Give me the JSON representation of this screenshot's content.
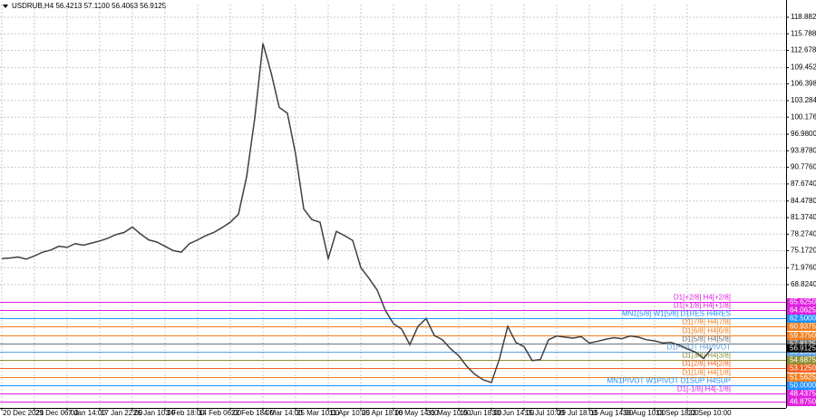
{
  "chart_data": {
    "type": "line",
    "title": "USDRUB,H4  56.4213 57.1100 56.4063 56.9125",
    "color": "#404040",
    "grid": true,
    "ylim": [
      45.74,
      121.26
    ],
    "yticks": [
      {
        "value": 118.882,
        "label": "118.8820"
      },
      {
        "value": 115.788,
        "label": "115.7880"
      },
      {
        "value": 112.678,
        "label": "112.6780"
      },
      {
        "value": 109.452,
        "label": "109.4520"
      },
      {
        "value": 106.398,
        "label": "106.3980"
      },
      {
        "value": 103.284,
        "label": "103.2840"
      },
      {
        "value": 100.176,
        "label": "100.1760"
      },
      {
        "value": 96.98,
        "label": "96.9800"
      },
      {
        "value": 93.878,
        "label": "93.8780"
      },
      {
        "value": 90.776,
        "label": "90.7760"
      },
      {
        "value": 87.674,
        "label": "87.6740"
      },
      {
        "value": 84.478,
        "label": "84.4780"
      },
      {
        "value": 81.374,
        "label": "81.3740"
      },
      {
        "value": 78.274,
        "label": "78.2740"
      },
      {
        "value": 75.172,
        "label": "75.1720"
      },
      {
        "value": 71.976,
        "label": "71.9760"
      },
      {
        "value": 68.824,
        "label": "68.8240"
      }
    ],
    "categories": [
      "20 Dec 2021",
      null,
      null,
      null,
      "29 Dec 06:00",
      null,
      null,
      null,
      "7 Jan 14:00",
      null,
      null,
      null,
      "17 Jan 22:00",
      null,
      null,
      null,
      "26 Jan 10:00",
      null,
      null,
      null,
      "3 Feb 18:00",
      null,
      null,
      null,
      "14 Feb 06:00",
      null,
      null,
      null,
      "22 Feb 18:00",
      null,
      null,
      null,
      "4 Mar 14:00",
      null,
      null,
      null,
      "25 Mar 10:00",
      null,
      null,
      null,
      "11 Apr 10:00",
      null,
      null,
      null,
      "25 Apr 18:00",
      null,
      null,
      null,
      "16 May 14:00",
      null,
      null,
      null,
      "31 May 10:00",
      null,
      null,
      null,
      "15 Jun 18:00",
      null,
      null,
      null,
      "30 Jun 14:00",
      null,
      null,
      null,
      "15 Jul 10:00",
      null,
      null,
      null,
      "29 Jul 18:00",
      null,
      null,
      null,
      "15 Aug 14:00",
      null,
      null,
      null,
      "30 Aug 10:00",
      null,
      null,
      null,
      "13 Sep 18:00",
      null,
      null,
      null,
      "23 Sep 10:00",
      null,
      null,
      null
    ],
    "values": [
      73.7,
      73.8,
      74.0,
      73.6,
      74.2,
      74.9,
      75.3,
      76.0,
      75.8,
      76.5,
      76.2,
      76.6,
      77.0,
      77.5,
      78.2,
      78.6,
      79.6,
      78.3,
      77.2,
      76.8,
      76.0,
      75.2,
      74.9,
      76.5,
      77.2,
      78.0,
      78.6,
      79.5,
      80.5,
      82.0,
      89.0,
      100.0,
      114.0,
      108.5,
      102.0,
      100.9,
      93.3,
      83.0,
      81.0,
      80.5,
      73.7,
      78.8,
      78.0,
      77.1,
      72.0,
      70.0,
      67.8,
      64.0,
      61.5,
      60.5,
      57.6,
      61.0,
      62.5,
      59.3,
      58.5,
      56.8,
      55.5,
      53.5,
      52.0,
      51.0,
      50.5,
      55.0,
      61.0,
      58.0,
      57.2,
      54.6,
      54.8,
      58.5,
      59.2,
      59.0,
      58.8,
      59.1,
      57.9,
      58.2,
      58.6,
      58.9,
      58.7,
      59.2,
      59.0,
      58.5,
      58.3,
      57.9,
      58.0,
      57.5,
      56.8,
      56.2,
      55.0,
      56.9125
    ],
    "current_price": {
      "value": 56.9125,
      "label": "56.9125"
    },
    "levels": [
      {
        "name": "D1[+2/8] H4[+2/8]",
        "color": "#e020e0",
        "value": 65.625,
        "value_label": "65.6250"
      },
      {
        "name": "D1[+1/8] H4[+1/8]",
        "color": "#e020e0",
        "value": 64.0625,
        "value_label": "64.0625"
      },
      {
        "name": "MN1[5/8] W1[5/8] D1RES H4RES",
        "color": "#1e90ff",
        "value": 62.5,
        "value_label": "62.5000"
      },
      {
        "name": "D1[7/8] H4[7/8]",
        "color": "#f08020",
        "value": 60.9375,
        "value_label": "60.9375"
      },
      {
        "name": "D1[6/8] H4[6/8]",
        "color": "#f08020",
        "value": 59.375,
        "value_label": "59.3750"
      },
      {
        "name": "D1[5/8] H4[5/8]",
        "color": "#707070",
        "value": 57.8125,
        "value_label": "57.8125"
      },
      {
        "name": "D1PIVOT H4PIVOT",
        "color": "#60a0e0",
        "value": 56.25,
        "value_label": "56.2500"
      },
      {
        "name": "D1[3/8] H4[3/8]",
        "color": "#909030",
        "value": 54.6875,
        "value_label": "54.6875"
      },
      {
        "name": "D1[2/8] H4[2/8]",
        "color": "#f06020",
        "value": 53.125,
        "value_label": "53.1250"
      },
      {
        "name": "D1[1/8] H4[1/8]",
        "color": "#f08020",
        "value": 51.5625,
        "value_label": "51.5625"
      },
      {
        "name": "MN1PIVOT W1PIVOT D1SUP H4SUP",
        "color": "#1e90ff",
        "value": 50.0,
        "value_label": "50.0000"
      },
      {
        "name": "D1[-1/8] H4[-1/8]",
        "color": "#e020e0",
        "value": 48.4375,
        "value_label": "48.4375"
      },
      {
        "color": "#e020e0",
        "value": 46.875,
        "value_label": "46.8750"
      }
    ]
  }
}
